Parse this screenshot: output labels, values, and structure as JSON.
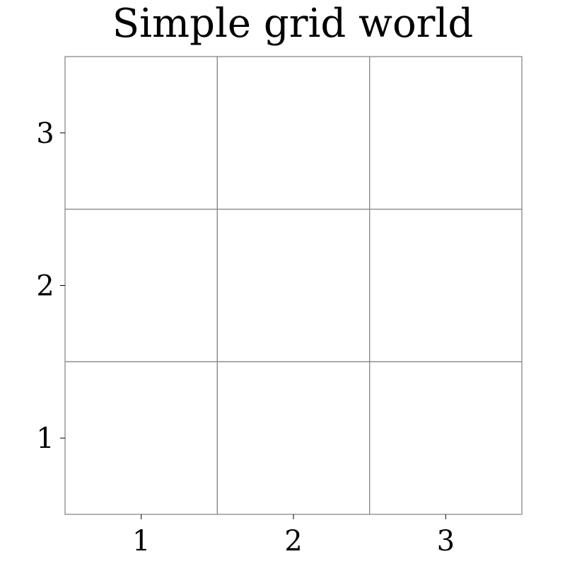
{
  "title": "Simple grid world",
  "grid": {
    "columns": [
      1,
      2,
      3
    ],
    "rows": [
      1,
      2,
      3
    ],
    "line_color": "#888888",
    "cell_fill": "#ffffff"
  },
  "axes": {
    "x_ticks": [
      "1",
      "2",
      "3"
    ],
    "y_ticks": [
      "1",
      "2",
      "3"
    ]
  }
}
